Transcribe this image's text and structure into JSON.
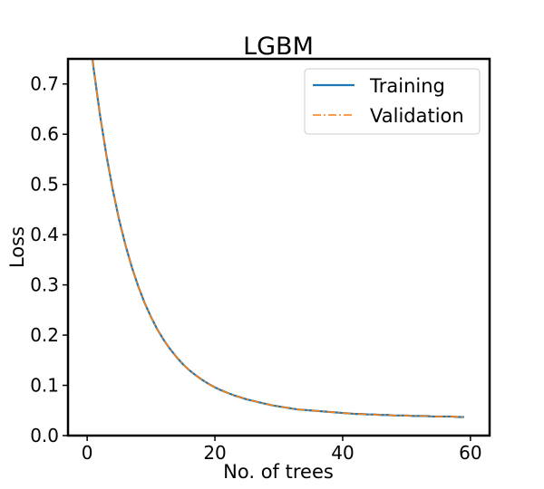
{
  "chart_data": {
    "type": "line",
    "title": "LGBM",
    "xlabel": "No. of trees",
    "ylabel": "Loss",
    "xlim": [
      -3,
      63
    ],
    "ylim": [
      0.0,
      0.75
    ],
    "x_ticks": [
      0,
      20,
      40,
      60
    ],
    "x_tick_labels": [
      "0",
      "20",
      "40",
      "60"
    ],
    "y_ticks": [
      0.0,
      0.1,
      0.2,
      0.3,
      0.4,
      0.5,
      0.6,
      0.7
    ],
    "y_tick_labels": [
      "0.0",
      "0.1",
      "0.2",
      "0.3",
      "0.4",
      "0.5",
      "0.6",
      "0.7"
    ],
    "grid": false,
    "legend_position": "top-right",
    "series": [
      {
        "name": "Training",
        "color": "#1f77b4",
        "style": "solid",
        "x": [
          0,
          1,
          2,
          3,
          4,
          5,
          6,
          7,
          8,
          9,
          10,
          11,
          12,
          13,
          14,
          15,
          16,
          17,
          18,
          19,
          20,
          21,
          22,
          23,
          24,
          25,
          26,
          27,
          28,
          29,
          30,
          31,
          32,
          33,
          34,
          35,
          36,
          37,
          38,
          39,
          40,
          41,
          42,
          43,
          44,
          45,
          46,
          47,
          48,
          49,
          50,
          51,
          52,
          53,
          54,
          55,
          56,
          57,
          58,
          59
        ],
        "y": [
          0.84,
          0.732,
          0.639,
          0.559,
          0.49,
          0.43,
          0.379,
          0.335,
          0.297,
          0.264,
          0.236,
          0.211,
          0.19,
          0.172,
          0.156,
          0.142,
          0.13,
          0.12,
          0.111,
          0.103,
          0.096,
          0.09,
          0.085,
          0.08,
          0.076,
          0.072,
          0.069,
          0.066,
          0.063,
          0.06,
          0.058,
          0.056,
          0.054,
          0.052,
          0.051,
          0.05,
          0.049,
          0.048,
          0.047,
          0.046,
          0.045,
          0.044,
          0.043,
          0.043,
          0.042,
          0.042,
          0.041,
          0.041,
          0.04,
          0.04,
          0.04,
          0.039,
          0.039,
          0.039,
          0.038,
          0.038,
          0.038,
          0.038,
          0.037,
          0.037
        ]
      },
      {
        "name": "Validation",
        "color": "#ff7f0e",
        "style": "dashdot",
        "x": [
          0,
          1,
          2,
          3,
          4,
          5,
          6,
          7,
          8,
          9,
          10,
          11,
          12,
          13,
          14,
          15,
          16,
          17,
          18,
          19,
          20,
          21,
          22,
          23,
          24,
          25,
          26,
          27,
          28,
          29,
          30,
          31,
          32,
          33,
          34,
          35,
          36,
          37,
          38,
          39,
          40,
          41,
          42,
          43,
          44,
          45,
          46,
          47,
          48,
          49,
          50,
          51,
          52,
          53,
          54,
          55,
          56,
          57,
          58,
          59
        ],
        "y": [
          0.84,
          0.732,
          0.639,
          0.559,
          0.49,
          0.43,
          0.379,
          0.335,
          0.297,
          0.264,
          0.236,
          0.211,
          0.19,
          0.172,
          0.156,
          0.142,
          0.13,
          0.12,
          0.111,
          0.103,
          0.096,
          0.09,
          0.085,
          0.08,
          0.076,
          0.072,
          0.069,
          0.066,
          0.063,
          0.06,
          0.058,
          0.056,
          0.054,
          0.052,
          0.051,
          0.05,
          0.049,
          0.048,
          0.047,
          0.046,
          0.045,
          0.044,
          0.043,
          0.043,
          0.042,
          0.042,
          0.041,
          0.041,
          0.04,
          0.04,
          0.04,
          0.039,
          0.039,
          0.039,
          0.038,
          0.038,
          0.038,
          0.038,
          0.037,
          0.037
        ]
      }
    ]
  }
}
